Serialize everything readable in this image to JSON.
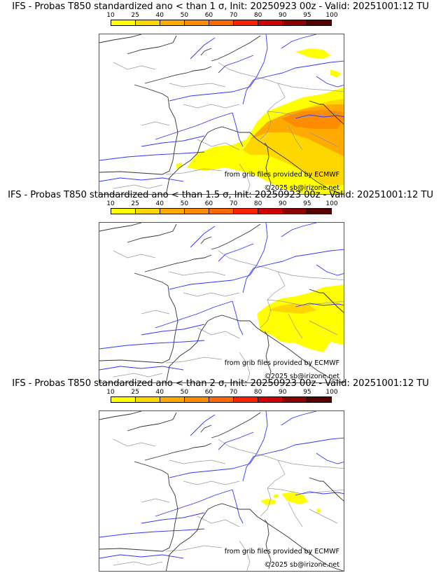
{
  "colorbar": {
    "ticks": [
      "10",
      "25",
      "40",
      "50",
      "60",
      "70",
      "80",
      "90",
      "95",
      "100"
    ],
    "colors": [
      "#ffff00",
      "#ffd700",
      "#ffaa00",
      "#ff8c00",
      "#ff6a00",
      "#ff2000",
      "#d40000",
      "#8b0000",
      "#5a0000"
    ]
  },
  "panels": [
    {
      "title": "IFS - Probas T850  standardized ano < than 1 σ, Init: 20250923 00z - Valid: 20251001:12 TU",
      "credit_source": "from grib files provided by ECMWF",
      "credit_copyright": "©2025 sb@irizone.net",
      "max_probability_class": "60"
    },
    {
      "title": "IFS - Probas T850  standardized ano < than 1.5 σ, Init: 20250923 00z - Valid: 20251001:12 TU",
      "credit_source": "from grib files provided by ECMWF",
      "credit_copyright": "©2025 sb@irizone.net",
      "max_probability_class": "40"
    },
    {
      "title": "IFS - Probas T850  standardized ano < than 2 σ, Init: 20250923 00z - Valid: 20251001:12 TU",
      "credit_source": "from grib files provided by ECMWF",
      "credit_copyright": "©2025 sb@irizone.net",
      "max_probability_class": "25"
    }
  ],
  "colors": {
    "rivers": "#3333ff",
    "borders": "#999999",
    "coast": "#333333"
  }
}
